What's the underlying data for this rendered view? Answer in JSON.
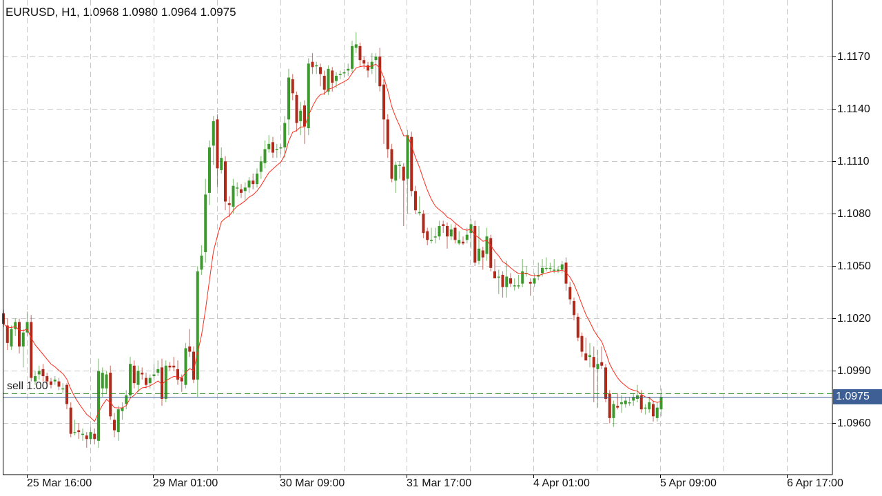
{
  "header": {
    "title": "EURUSD, H1, 1.0968 1.0980 1.0964 1.0975"
  },
  "trade": {
    "label": "sell 1.00",
    "order_price": 1.0977,
    "order_color": "#2e8b22"
  },
  "bid": {
    "label": "1.0975",
    "price": 1.0975,
    "color": "#3d5f95"
  },
  "chart_data": {
    "type": "candlestick",
    "symbol": "EURUSD",
    "timeframe": "H1",
    "ylim": [
      1.09306,
      1.12024
    ],
    "grid": true,
    "y_ticks": [
      "1.1170",
      "1.1140",
      "1.1110",
      "1.1080",
      "1.1050",
      "1.1020",
      "1.0990",
      "1.0960"
    ],
    "x_ticks": [
      "25 Mar 16:00",
      "29 Mar 01:00",
      "30 Mar 09:00",
      "31 Mar 17:00",
      "4 Apr 01:00",
      "5 Apr 09:00",
      "6 Apr 17:00"
    ],
    "colors": {
      "bull": "#3c9a2c",
      "bear": "#b02a1c",
      "moving_average": "#ff2a1a",
      "grid": "#c8c8c8"
    },
    "indicator": "moving average",
    "candles_ohlc": [
      [
        1.1023,
        1.1025,
        1.1015,
        1.1017
      ],
      [
        1.1016,
        1.102,
        1.1002,
        1.1006
      ],
      [
        1.1004,
        1.1016,
        1.1002,
        1.1014
      ],
      [
        1.1014,
        1.102,
        1.101,
        1.1018
      ],
      [
        1.1018,
        1.102,
        1.1,
        1.1004
      ],
      [
        1.1004,
        1.1014,
        1.0992,
        1.1012
      ],
      [
        1.1012,
        1.1024,
        1.101,
        1.1018
      ],
      [
        1.1018,
        1.1022,
        1.0984,
        1.0986
      ],
      [
        1.0984,
        1.099,
        1.0982,
        1.0987
      ],
      [
        1.0988,
        1.0993,
        1.0985,
        1.099
      ],
      [
        1.0991,
        1.0994,
        1.0984,
        1.0987
      ],
      [
        1.0987,
        1.0989,
        1.0981,
        1.0984
      ],
      [
        1.0984,
        1.0986,
        1.098,
        1.0982
      ],
      [
        1.0984,
        1.0987,
        1.0982,
        1.0985
      ],
      [
        1.0984,
        1.0986,
        1.0979,
        1.0981
      ],
      [
        1.098,
        1.0983,
        1.0977,
        1.098
      ],
      [
        1.0982,
        1.0983,
        1.0968,
        1.0971
      ],
      [
        1.0969,
        1.0972,
        1.0952,
        1.0954
      ],
      [
        1.0955,
        1.0962,
        1.0953,
        1.0955
      ],
      [
        1.0956,
        1.096,
        1.0951,
        1.0955
      ],
      [
        1.0954,
        1.0957,
        1.095,
        1.0954
      ],
      [
        1.0953,
        1.0955,
        1.0946,
        1.0951
      ],
      [
        1.0951,
        1.0958,
        1.0948,
        1.0955
      ],
      [
        1.0954,
        1.0957,
        1.0948,
        1.0951
      ],
      [
        1.095,
        1.0997,
        1.0946,
        1.099
      ],
      [
        1.098,
        1.0992,
        1.0975,
        1.0989
      ],
      [
        1.098,
        1.099,
        1.0977,
        1.0988
      ],
      [
        1.0989,
        1.0993,
        1.0962,
        1.0964
      ],
      [
        1.0962,
        1.0966,
        1.0952,
        1.0956
      ],
      [
        1.0955,
        1.097,
        1.095,
        1.0968
      ],
      [
        1.0967,
        1.0972,
        1.0962,
        1.0969
      ],
      [
        1.0971,
        1.0979,
        1.0968,
        1.0976
      ],
      [
        1.0976,
        1.0998,
        1.0975,
        1.0994
      ],
      [
        1.0993,
        1.0996,
        1.098,
        1.0983
      ],
      [
        1.0982,
        1.0993,
        1.0978,
        1.099
      ],
      [
        1.0989,
        1.0992,
        1.0985,
        1.0988
      ],
      [
        1.0986,
        1.0989,
        1.098,
        1.0982
      ],
      [
        1.0983,
        1.0988,
        1.098,
        1.0986
      ],
      [
        1.0987,
        1.0994,
        1.0985,
        1.0988
      ],
      [
        1.0989,
        1.0996,
        1.0987,
        1.0991
      ],
      [
        1.0992,
        1.0997,
        1.097,
        1.0974
      ],
      [
        1.0974,
        1.0996,
        1.0972,
        1.0993
      ],
      [
        1.0993,
        1.0995,
        1.099,
        1.0992
      ],
      [
        1.0993,
        1.0998,
        1.099,
        1.0992
      ],
      [
        1.0991,
        1.0996,
        1.0982,
        1.0985
      ],
      [
        1.0986,
        1.0988,
        1.0978,
        1.0984
      ],
      [
        1.0982,
        1.1006,
        1.098,
        1.1003
      ],
      [
        1.1004,
        1.1014,
        1.0998,
        1.1001
      ],
      [
        1.1001,
        1.1004,
        1.0983,
        1.0985
      ],
      [
        1.0985,
        1.105,
        1.0975,
        1.1047
      ],
      [
        1.1048,
        1.1062,
        1.1045,
        1.1056
      ],
      [
        1.1058,
        1.11,
        1.1052,
        1.1091
      ],
      [
        1.1092,
        1.1122,
        1.1085,
        1.1118
      ],
      [
        1.1119,
        1.1136,
        1.1108,
        1.1133
      ],
      [
        1.1134,
        1.1137,
        1.1095,
        1.1106
      ],
      [
        1.1105,
        1.1118,
        1.1103,
        1.1112
      ],
      [
        1.111,
        1.1113,
        1.1082,
        1.1087
      ],
      [
        1.1086,
        1.109,
        1.1078,
        1.1085
      ],
      [
        1.1084,
        1.11,
        1.108,
        1.1096
      ],
      [
        1.1095,
        1.1098,
        1.109,
        1.1095
      ],
      [
        1.1094,
        1.1097,
        1.1089,
        1.1092
      ],
      [
        1.1093,
        1.1098,
        1.1088,
        1.1095
      ],
      [
        1.1095,
        1.1101,
        1.1092,
        1.1099
      ],
      [
        1.1099,
        1.1103,
        1.1094,
        1.1097
      ],
      [
        1.1097,
        1.1106,
        1.1095,
        1.1103
      ],
      [
        1.1104,
        1.1113,
        1.11,
        1.111
      ],
      [
        1.1109,
        1.1122,
        1.1106,
        1.1117
      ],
      [
        1.1117,
        1.1125,
        1.1115,
        1.112
      ],
      [
        1.1121,
        1.1124,
        1.1112,
        1.1115
      ],
      [
        1.1117,
        1.112,
        1.1112,
        1.1117
      ],
      [
        1.1118,
        1.112,
        1.1114,
        1.1118
      ],
      [
        1.1118,
        1.1136,
        1.1112,
        1.1132
      ],
      [
        1.1134,
        1.1163,
        1.1125,
        1.1158
      ],
      [
        1.1157,
        1.116,
        1.1145,
        1.1149
      ],
      [
        1.1148,
        1.115,
        1.1127,
        1.1132
      ],
      [
        1.1133,
        1.1144,
        1.1125,
        1.1139
      ],
      [
        1.1142,
        1.1145,
        1.112,
        1.113
      ],
      [
        1.1129,
        1.1169,
        1.1125,
        1.1166
      ],
      [
        1.1167,
        1.1172,
        1.116,
        1.1164
      ],
      [
        1.1165,
        1.1167,
        1.116,
        1.1165
      ],
      [
        1.1164,
        1.1166,
        1.1153,
        1.116
      ],
      [
        1.1159,
        1.1162,
        1.1148,
        1.1151
      ],
      [
        1.115,
        1.1165,
        1.1148,
        1.1163
      ],
      [
        1.1162,
        1.1164,
        1.115,
        1.1155
      ],
      [
        1.1156,
        1.1161,
        1.1152,
        1.1159
      ],
      [
        1.116,
        1.1162,
        1.1157,
        1.116
      ],
      [
        1.1161,
        1.1163,
        1.1158,
        1.1161
      ],
      [
        1.1162,
        1.1166,
        1.1159,
        1.1163
      ],
      [
        1.1163,
        1.1179,
        1.1161,
        1.1176
      ],
      [
        1.1175,
        1.1184,
        1.1172,
        1.1177
      ],
      [
        1.1176,
        1.1178,
        1.1164,
        1.1168
      ],
      [
        1.1168,
        1.117,
        1.1163,
        1.1166
      ],
      [
        1.1165,
        1.1167,
        1.1158,
        1.1162
      ],
      [
        1.1163,
        1.1172,
        1.116,
        1.1167
      ],
      [
        1.1168,
        1.1172,
        1.1155,
        1.117
      ],
      [
        1.117,
        1.1175,
        1.115,
        1.1153
      ],
      [
        1.1154,
        1.1157,
        1.112,
        1.1134
      ],
      [
        1.1134,
        1.1137,
        1.1112,
        1.1117
      ],
      [
        1.1117,
        1.112,
        1.1098,
        1.11
      ],
      [
        1.1099,
        1.111,
        1.1092,
        1.1108
      ],
      [
        1.1108,
        1.111,
        1.11,
        1.1108
      ],
      [
        1.1107,
        1.1109,
        1.1073,
        1.1099
      ],
      [
        1.11,
        1.1128,
        1.108,
        1.1125
      ],
      [
        1.1124,
        1.1127,
        1.109,
        1.1093
      ],
      [
        1.1093,
        1.1096,
        1.108,
        1.1082
      ],
      [
        1.1081,
        1.109,
        1.1079,
        1.1081
      ],
      [
        1.108,
        1.1082,
        1.1066,
        1.1069
      ],
      [
        1.107,
        1.1072,
        1.1062,
        1.1065
      ],
      [
        1.1065,
        1.1072,
        1.1063,
        1.1065
      ],
      [
        1.1067,
        1.1072,
        1.1063,
        1.1067
      ],
      [
        1.1067,
        1.1076,
        1.1065,
        1.1073
      ],
      [
        1.1074,
        1.1076,
        1.1069,
        1.1073
      ],
      [
        1.1073,
        1.1075,
        1.106,
        1.1067
      ],
      [
        1.1067,
        1.1074,
        1.1065,
        1.1071
      ],
      [
        1.1072,
        1.1074,
        1.1063,
        1.1065
      ],
      [
        1.1063,
        1.107,
        1.1062,
        1.1065
      ],
      [
        1.1064,
        1.1067,
        1.1062,
        1.1063
      ],
      [
        1.1065,
        1.1072,
        1.1063,
        1.1068
      ],
      [
        1.1069,
        1.1077,
        1.106,
        1.1074
      ],
      [
        1.1073,
        1.1076,
        1.105,
        1.1052
      ],
      [
        1.1053,
        1.1073,
        1.1051,
        1.106
      ],
      [
        1.1059,
        1.1061,
        1.1048,
        1.1055
      ],
      [
        1.1057,
        1.1072,
        1.1053,
        1.1067
      ],
      [
        1.1066,
        1.1068,
        1.1047,
        1.1049
      ],
      [
        1.1047,
        1.1054,
        1.1045,
        1.1043
      ],
      [
        1.1044,
        1.1048,
        1.1034,
        1.1044
      ],
      [
        1.1045,
        1.1047,
        1.1032,
        1.1038
      ],
      [
        1.1038,
        1.1053,
        1.1032,
        1.1044
      ],
      [
        1.1043,
        1.1046,
        1.1038,
        1.104
      ],
      [
        1.1039,
        1.1043,
        1.1036,
        1.1039
      ],
      [
        1.1039,
        1.1045,
        1.1037,
        1.1039
      ],
      [
        1.104,
        1.1054,
        1.1038,
        1.1047
      ],
      [
        1.1046,
        1.105,
        1.1044,
        1.1046
      ],
      [
        1.1041,
        1.1043,
        1.1033,
        1.104
      ],
      [
        1.104,
        1.1046,
        1.1038,
        1.1043
      ],
      [
        1.1044,
        1.1052,
        1.1042,
        1.1045
      ],
      [
        1.1046,
        1.1054,
        1.1044,
        1.1049
      ],
      [
        1.1049,
        1.1055,
        1.1047,
        1.1049
      ],
      [
        1.1049,
        1.1052,
        1.1047,
        1.1049
      ],
      [
        1.1048,
        1.1054,
        1.1046,
        1.1048
      ],
      [
        1.1048,
        1.105,
        1.1046,
        1.1048
      ],
      [
        1.1048,
        1.1053,
        1.1046,
        1.1051
      ],
      [
        1.1052,
        1.1055,
        1.1036,
        1.104
      ],
      [
        1.1038,
        1.1041,
        1.1028,
        1.1031
      ],
      [
        1.103,
        1.1032,
        1.1019,
        1.1022
      ],
      [
        1.1021,
        1.1023,
        1.1007,
        1.1009
      ],
      [
        1.101,
        1.1012,
        1.0998,
        1.1001
      ],
      [
        1.1,
        1.1009,
        1.0996,
        1.0996
      ],
      [
        1.0998,
        1.1006,
        1.0992,
        1.0999
      ],
      [
        1.0998,
        1.1004,
        1.0972,
        1.0992
      ],
      [
        1.0991,
        1.1002,
        1.0969,
        1.0994
      ],
      [
        1.0995,
        1.1004,
        1.0991,
        1.0993
      ],
      [
        1.0992,
        1.0994,
        1.0972,
        1.0974
      ],
      [
        1.0977,
        1.0979,
        1.096,
        1.0963
      ],
      [
        1.0963,
        1.0973,
        1.0958,
        1.0971
      ],
      [
        1.097,
        1.0977,
        1.0968,
        1.0969
      ],
      [
        1.0971,
        1.0976,
        1.0966,
        1.0972
      ],
      [
        1.0971,
        1.0975,
        1.0969,
        1.0973
      ],
      [
        1.0972,
        1.0975,
        1.097,
        1.0972
      ],
      [
        1.0973,
        1.0977,
        1.097,
        1.0975
      ],
      [
        1.0974,
        1.0982,
        1.0972,
        1.0976
      ],
      [
        1.0976,
        1.0979,
        1.0966,
        1.0968
      ],
      [
        1.0969,
        1.0971,
        1.0965,
        1.0969
      ],
      [
        1.0968,
        1.0975,
        1.0966,
        1.0972
      ],
      [
        1.0971,
        1.0973,
        1.0961,
        1.0964
      ],
      [
        1.0963,
        1.0972,
        1.0961,
        1.0969
      ],
      [
        1.0968,
        1.098,
        1.0964,
        1.0975
      ]
    ]
  }
}
